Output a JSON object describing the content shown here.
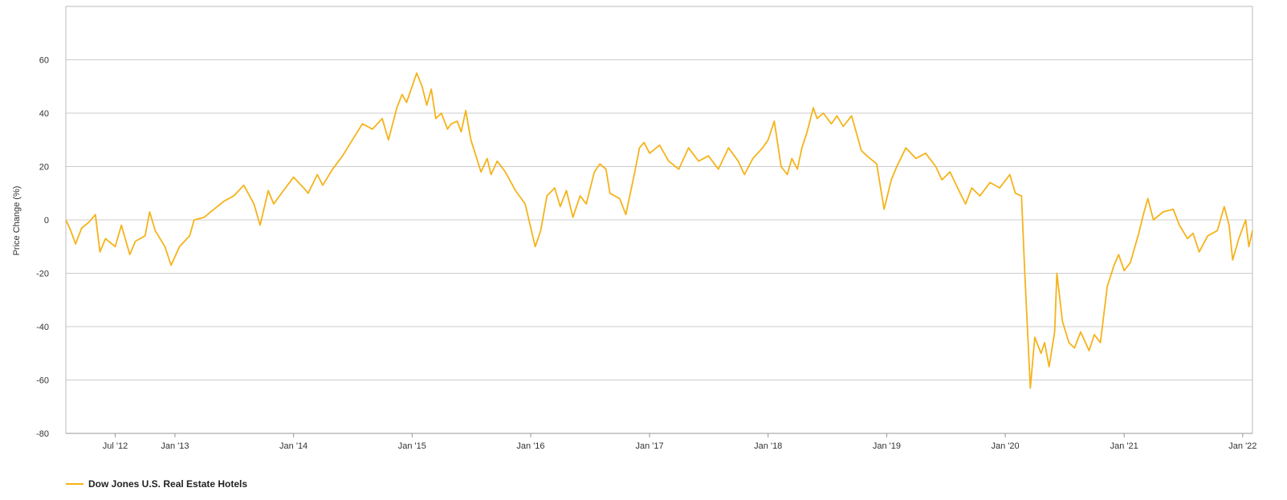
{
  "chart_data": {
    "type": "line",
    "ylabel": "Price Change (%)",
    "xlabel": "",
    "title": "",
    "ylim": [
      -80,
      80
    ],
    "yticks": [
      60,
      40,
      20,
      0,
      -20,
      -40,
      -60,
      -80
    ],
    "grid": true,
    "legend_position": "bottom-left",
    "xlim": [
      "2012-01-31",
      "2022-01-31"
    ],
    "xticks": [
      {
        "date": "2012-07-01",
        "label": "Jul '12"
      },
      {
        "date": "2013-01-01",
        "label": "Jan '13"
      },
      {
        "date": "2014-01-01",
        "label": "Jan '14"
      },
      {
        "date": "2015-01-01",
        "label": "Jan '15"
      },
      {
        "date": "2016-01-01",
        "label": "Jan '16"
      },
      {
        "date": "2017-01-01",
        "label": "Jan '17"
      },
      {
        "date": "2018-01-01",
        "label": "Jan '18"
      },
      {
        "date": "2019-01-01",
        "label": "Jan '19"
      },
      {
        "date": "2020-01-01",
        "label": "Jan '20"
      },
      {
        "date": "2021-01-01",
        "label": "Jan '21"
      },
      {
        "date": "2022-01-01",
        "label": "Jan '22"
      }
    ],
    "series": [
      {
        "name": "Dow Jones U.S. Real Estate Hotels",
        "color": "#f5b31a",
        "points": [
          [
            "2012-01-31",
            0
          ],
          [
            "2012-02-15",
            -4
          ],
          [
            "2012-03-01",
            -9
          ],
          [
            "2012-03-20",
            -3
          ],
          [
            "2012-04-10",
            -1
          ],
          [
            "2012-05-01",
            2
          ],
          [
            "2012-05-15",
            -12
          ],
          [
            "2012-06-01",
            -7
          ],
          [
            "2012-07-01",
            -10
          ],
          [
            "2012-07-20",
            -2
          ],
          [
            "2012-08-15",
            -13
          ],
          [
            "2012-09-01",
            -8
          ],
          [
            "2012-10-01",
            -6
          ],
          [
            "2012-10-15",
            3
          ],
          [
            "2012-11-01",
            -4
          ],
          [
            "2012-12-01",
            -10
          ],
          [
            "2012-12-20",
            -17
          ],
          [
            "2013-01-15",
            -10
          ],
          [
            "2013-02-15",
            -6
          ],
          [
            "2013-03-01",
            0
          ],
          [
            "2013-04-01",
            1
          ],
          [
            "2013-05-01",
            4
          ],
          [
            "2013-06-01",
            7
          ],
          [
            "2013-07-01",
            9
          ],
          [
            "2013-08-01",
            13
          ],
          [
            "2013-09-01",
            6
          ],
          [
            "2013-09-20",
            -2
          ],
          [
            "2013-10-15",
            11
          ],
          [
            "2013-11-01",
            6
          ],
          [
            "2013-12-01",
            11
          ],
          [
            "2014-01-01",
            16
          ],
          [
            "2014-02-01",
            12
          ],
          [
            "2014-02-15",
            10
          ],
          [
            "2014-03-15",
            17
          ],
          [
            "2014-04-01",
            13
          ],
          [
            "2014-05-01",
            19
          ],
          [
            "2014-06-01",
            24
          ],
          [
            "2014-07-01",
            30
          ],
          [
            "2014-08-01",
            36
          ],
          [
            "2014-09-01",
            34
          ],
          [
            "2014-10-01",
            38
          ],
          [
            "2014-10-20",
            30
          ],
          [
            "2014-11-15",
            42
          ],
          [
            "2014-12-01",
            47
          ],
          [
            "2014-12-15",
            44
          ],
          [
            "2015-01-15",
            55
          ],
          [
            "2015-02-01",
            50
          ],
          [
            "2015-02-15",
            43
          ],
          [
            "2015-03-01",
            49
          ],
          [
            "2015-03-15",
            38
          ],
          [
            "2015-04-01",
            40
          ],
          [
            "2015-04-20",
            34
          ],
          [
            "2015-05-01",
            36
          ],
          [
            "2015-05-20",
            37
          ],
          [
            "2015-06-01",
            33
          ],
          [
            "2015-06-15",
            41
          ],
          [
            "2015-07-01",
            30
          ],
          [
            "2015-08-01",
            18
          ],
          [
            "2015-08-20",
            23
          ],
          [
            "2015-09-01",
            17
          ],
          [
            "2015-09-20",
            22
          ],
          [
            "2015-10-15",
            18
          ],
          [
            "2015-11-15",
            11
          ],
          [
            "2015-12-15",
            6
          ],
          [
            "2016-01-15",
            -10
          ],
          [
            "2016-02-01",
            -4
          ],
          [
            "2016-02-20",
            9
          ],
          [
            "2016-03-15",
            12
          ],
          [
            "2016-04-01",
            5
          ],
          [
            "2016-04-20",
            11
          ],
          [
            "2016-05-10",
            1
          ],
          [
            "2016-06-01",
            9
          ],
          [
            "2016-06-20",
            6
          ],
          [
            "2016-07-15",
            18
          ],
          [
            "2016-08-01",
            21
          ],
          [
            "2016-08-20",
            19
          ],
          [
            "2016-09-01",
            10
          ],
          [
            "2016-10-01",
            8
          ],
          [
            "2016-10-20",
            2
          ],
          [
            "2016-11-15",
            17
          ],
          [
            "2016-12-01",
            27
          ],
          [
            "2016-12-15",
            29
          ],
          [
            "2017-01-01",
            25
          ],
          [
            "2017-02-01",
            28
          ],
          [
            "2017-03-01",
            22
          ],
          [
            "2017-04-01",
            19
          ],
          [
            "2017-05-01",
            27
          ],
          [
            "2017-06-01",
            22
          ],
          [
            "2017-07-01",
            24
          ],
          [
            "2017-08-01",
            19
          ],
          [
            "2017-09-01",
            27
          ],
          [
            "2017-10-01",
            22
          ],
          [
            "2017-10-20",
            17
          ],
          [
            "2017-11-15",
            23
          ],
          [
            "2017-12-15",
            27
          ],
          [
            "2018-01-01",
            30
          ],
          [
            "2018-01-20",
            37
          ],
          [
            "2018-02-10",
            20
          ],
          [
            "2018-03-01",
            17
          ],
          [
            "2018-03-15",
            23
          ],
          [
            "2018-04-01",
            19
          ],
          [
            "2018-04-15",
            27
          ],
          [
            "2018-05-01",
            33
          ],
          [
            "2018-05-20",
            42
          ],
          [
            "2018-06-01",
            38
          ],
          [
            "2018-06-20",
            40
          ],
          [
            "2018-07-15",
            36
          ],
          [
            "2018-08-01",
            39
          ],
          [
            "2018-08-20",
            35
          ],
          [
            "2018-09-15",
            39
          ],
          [
            "2018-10-15",
            26
          ],
          [
            "2018-11-01",
            24
          ],
          [
            "2018-12-01",
            21
          ],
          [
            "2018-12-24",
            4
          ],
          [
            "2019-01-15",
            15
          ],
          [
            "2019-02-01",
            20
          ],
          [
            "2019-03-01",
            27
          ],
          [
            "2019-04-01",
            23
          ],
          [
            "2019-05-01",
            25
          ],
          [
            "2019-06-01",
            20
          ],
          [
            "2019-06-20",
            15
          ],
          [
            "2019-07-15",
            18
          ],
          [
            "2019-08-15",
            10
          ],
          [
            "2019-09-01",
            6
          ],
          [
            "2019-09-20",
            12
          ],
          [
            "2019-10-15",
            9
          ],
          [
            "2019-11-15",
            14
          ],
          [
            "2019-12-15",
            12
          ],
          [
            "2020-01-15",
            17
          ],
          [
            "2020-02-01",
            10
          ],
          [
            "2020-02-20",
            9
          ],
          [
            "2020-03-01",
            -20
          ],
          [
            "2020-03-18",
            -63
          ],
          [
            "2020-04-01",
            -44
          ],
          [
            "2020-04-20",
            -50
          ],
          [
            "2020-05-01",
            -46
          ],
          [
            "2020-05-15",
            -55
          ],
          [
            "2020-06-01",
            -42
          ],
          [
            "2020-06-08",
            -20
          ],
          [
            "2020-06-25",
            -38
          ],
          [
            "2020-07-15",
            -46
          ],
          [
            "2020-08-01",
            -48
          ],
          [
            "2020-08-20",
            -42
          ],
          [
            "2020-09-15",
            -49
          ],
          [
            "2020-10-01",
            -43
          ],
          [
            "2020-10-20",
            -46
          ],
          [
            "2020-11-10",
            -25
          ],
          [
            "2020-12-01",
            -17
          ],
          [
            "2020-12-15",
            -13
          ],
          [
            "2021-01-01",
            -19
          ],
          [
            "2021-01-20",
            -16
          ],
          [
            "2021-02-15",
            -5
          ],
          [
            "2021-03-01",
            2
          ],
          [
            "2021-03-15",
            8
          ],
          [
            "2021-04-01",
            0
          ],
          [
            "2021-05-01",
            3
          ],
          [
            "2021-06-01",
            4
          ],
          [
            "2021-06-20",
            -2
          ],
          [
            "2021-07-15",
            -7
          ],
          [
            "2021-08-01",
            -5
          ],
          [
            "2021-08-20",
            -12
          ],
          [
            "2021-09-15",
            -6
          ],
          [
            "2021-10-15",
            -4
          ],
          [
            "2021-11-05",
            5
          ],
          [
            "2021-11-20",
            -2
          ],
          [
            "2021-12-01",
            -15
          ],
          [
            "2021-12-20",
            -7
          ],
          [
            "2022-01-10",
            0
          ],
          [
            "2022-01-20",
            -10
          ],
          [
            "2022-01-31",
            -4
          ]
        ]
      }
    ]
  }
}
